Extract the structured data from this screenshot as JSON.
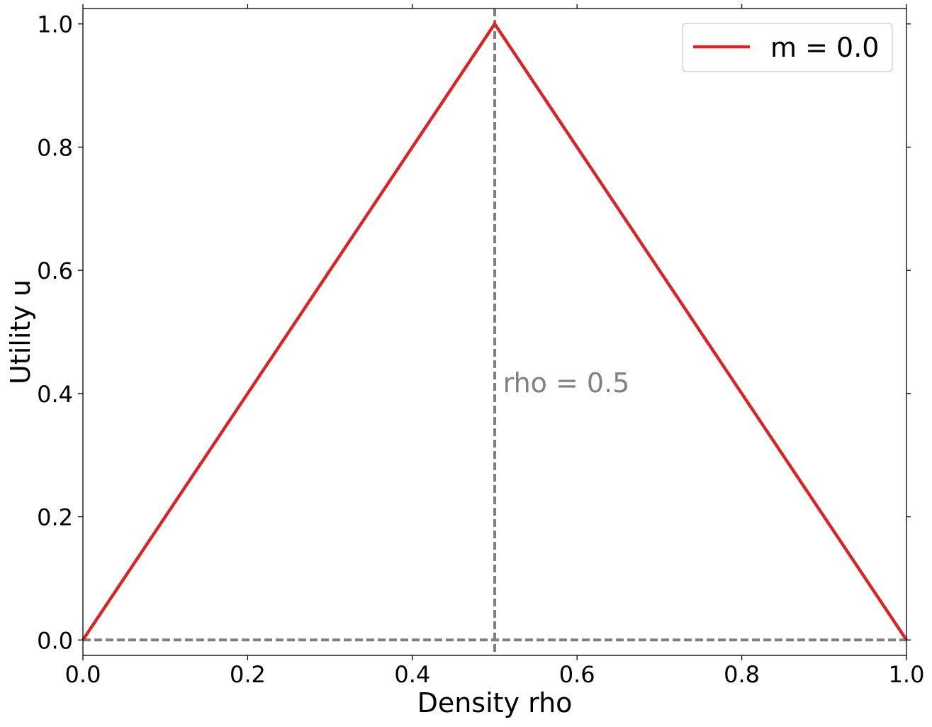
{
  "chart_data": {
    "type": "line",
    "title": "",
    "xlabel": "Density rho",
    "ylabel": "Utility u",
    "xlim": [
      0.0,
      1.0
    ],
    "ylim": [
      -0.025,
      1.025
    ],
    "xticks": [
      0.0,
      0.2,
      0.4,
      0.6,
      0.8,
      1.0
    ],
    "xtick_labels": [
      "0.0",
      "0.2",
      "0.4",
      "0.6",
      "0.8",
      "1.0"
    ],
    "yticks": [
      0.0,
      0.2,
      0.4,
      0.6,
      0.8,
      1.0
    ],
    "ytick_labels": [
      "0.0",
      "0.2",
      "0.4",
      "0.6",
      "0.8",
      "1.0"
    ],
    "grid": false,
    "legend_position": "top-right",
    "series": [
      {
        "name": "m = 0.0",
        "color": "#d62728",
        "x": [
          0.0,
          0.5,
          1.0
        ],
        "y": [
          0.0,
          1.0,
          0.0
        ]
      }
    ],
    "reference_lines": [
      {
        "orientation": "vertical",
        "value": 0.5,
        "style": "dashed",
        "color": "#808080"
      },
      {
        "orientation": "horizontal",
        "value": 0.0,
        "style": "dashed",
        "color": "#808080"
      }
    ],
    "annotations": [
      {
        "text": "rho = 0.5",
        "x": 0.51,
        "y": 0.4,
        "color": "#808080"
      }
    ]
  }
}
